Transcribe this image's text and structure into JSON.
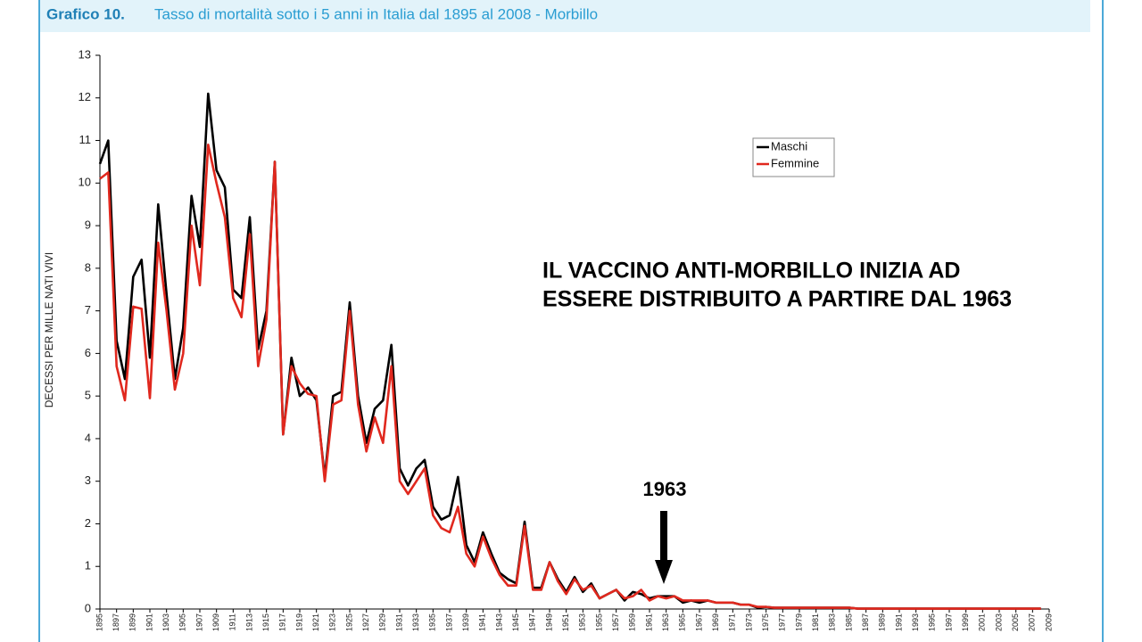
{
  "chart_data": {
    "type": "line",
    "title_label": "Grafico 10.",
    "title": "Tasso di mortalità sotto i 5 anni in Italia dal 1895 al 2008 - Morbillo",
    "y_label": "DECESSI PER MILLE NATI VIVI",
    "annotations": [
      "IL VACCINO ANTI-MORBILLO INIZIA AD",
      "ESSERE DISTRIBUITO A PARTIRE DAL 1963",
      "1963"
    ],
    "x": [
      1895,
      1896,
      1897,
      1898,
      1899,
      1900,
      1901,
      1902,
      1903,
      1904,
      1905,
      1906,
      1907,
      1908,
      1909,
      1910,
      1911,
      1912,
      1913,
      1914,
      1915,
      1916,
      1917,
      1918,
      1919,
      1920,
      1921,
      1922,
      1923,
      1924,
      1925,
      1926,
      1927,
      1928,
      1929,
      1930,
      1931,
      1932,
      1933,
      1934,
      1935,
      1936,
      1937,
      1938,
      1939,
      1940,
      1941,
      1942,
      1943,
      1944,
      1945,
      1946,
      1947,
      1948,
      1949,
      1950,
      1951,
      1952,
      1953,
      1954,
      1955,
      1956,
      1957,
      1958,
      1959,
      1960,
      1961,
      1962,
      1963,
      1964,
      1965,
      1966,
      1967,
      1968,
      1969,
      1970,
      1971,
      1972,
      1973,
      1974,
      1975,
      1976,
      1977,
      1978,
      1979,
      1980,
      1981,
      1982,
      1983,
      1984,
      1985,
      1986,
      1987,
      1988,
      1989,
      1990,
      1991,
      1992,
      1993,
      1994,
      1995,
      1996,
      1997,
      1998,
      1999,
      2000,
      2001,
      2002,
      2003,
      2004,
      2005,
      2006,
      2007,
      2008
    ],
    "series": [
      {
        "name": "Maschi",
        "color": "#000000",
        "values": [
          10.45,
          11.0,
          6.3,
          5.4,
          7.8,
          8.2,
          5.9,
          9.5,
          7.4,
          5.4,
          6.6,
          9.7,
          8.5,
          12.1,
          10.3,
          9.9,
          7.5,
          7.3,
          9.2,
          6.1,
          7.0,
          10.5,
          4.1,
          5.9,
          5.0,
          5.2,
          4.9,
          3.1,
          5.0,
          5.1,
          7.2,
          5.0,
          3.9,
          4.7,
          4.9,
          6.2,
          3.3,
          2.9,
          3.3,
          3.5,
          2.4,
          2.1,
          2.2,
          3.1,
          1.5,
          1.1,
          1.8,
          1.3,
          0.85,
          0.7,
          0.6,
          2.05,
          0.5,
          0.5,
          1.1,
          0.7,
          0.4,
          0.75,
          0.4,
          0.6,
          0.25,
          0.35,
          0.45,
          0.2,
          0.4,
          0.35,
          0.25,
          0.3,
          0.3,
          0.3,
          0.15,
          0.2,
          0.15,
          0.2,
          0.15,
          0.15,
          0.15,
          0.1,
          0.1,
          0.03,
          0.05,
          0.03,
          0.03,
          0.03,
          0.03,
          0.03,
          0.03,
          0.03,
          0.03,
          0.03,
          0.03,
          0.01,
          0.01,
          0.01,
          0.01,
          0.01,
          0.01,
          0.01,
          0.01,
          0.01,
          0.01,
          0.01,
          0.01,
          0.01,
          0.01,
          0.01,
          0.01,
          0.01,
          0.01,
          0.01,
          0.01,
          0.01,
          0.01,
          0.01
        ]
      },
      {
        "name": "Femmine",
        "color": "#e0281e",
        "values": [
          10.1,
          10.25,
          5.7,
          4.9,
          7.1,
          7.05,
          4.95,
          8.6,
          7.0,
          5.15,
          6.0,
          9.0,
          7.6,
          10.9,
          10.0,
          9.2,
          7.3,
          6.85,
          8.8,
          5.7,
          6.8,
          10.5,
          4.1,
          5.7,
          5.3,
          5.05,
          5.0,
          3.0,
          4.8,
          4.9,
          7.0,
          4.8,
          3.7,
          4.5,
          3.9,
          5.7,
          3.0,
          2.7,
          3.0,
          3.3,
          2.2,
          1.9,
          1.8,
          2.4,
          1.3,
          1.0,
          1.7,
          1.2,
          0.8,
          0.55,
          0.55,
          1.95,
          0.45,
          0.45,
          1.1,
          0.65,
          0.35,
          0.7,
          0.45,
          0.55,
          0.25,
          0.35,
          0.45,
          0.25,
          0.3,
          0.45,
          0.2,
          0.3,
          0.25,
          0.3,
          0.2,
          0.2,
          0.2,
          0.2,
          0.15,
          0.15,
          0.15,
          0.1,
          0.1,
          0.05,
          0.05,
          0.03,
          0.03,
          0.03,
          0.03,
          0.03,
          0.03,
          0.03,
          0.03,
          0.03,
          0.03,
          0.01,
          0.01,
          0.01,
          0.01,
          0.01,
          0.01,
          0.01,
          0.01,
          0.01,
          0.01,
          0.01,
          0.01,
          0.01,
          0.01,
          0.01,
          0.01,
          0.01,
          0.01,
          0.01,
          0.01,
          0.01,
          0.01,
          0.01
        ]
      }
    ],
    "xlim": [
      1895,
      2009
    ],
    "xticks": [
      1895,
      1897,
      1899,
      1901,
      1903,
      1905,
      1907,
      1909,
      1911,
      1913,
      1915,
      1917,
      1919,
      1921,
      1923,
      1925,
      1927,
      1929,
      1931,
      1933,
      1935,
      1937,
      1939,
      1941,
      1943,
      1945,
      1947,
      1949,
      1951,
      1953,
      1955,
      1957,
      1959,
      1961,
      1963,
      1965,
      1967,
      1969,
      1971,
      1973,
      1975,
      1977,
      1979,
      1981,
      1983,
      1985,
      1987,
      1989,
      1991,
      1993,
      1995,
      1997,
      1999,
      2001,
      2003,
      2005,
      2007,
      2009
    ],
    "ylim": [
      0,
      13
    ],
    "yticks": [
      0,
      1,
      2,
      3,
      4,
      5,
      6,
      7,
      8,
      9,
      10,
      11,
      12,
      13
    ]
  }
}
